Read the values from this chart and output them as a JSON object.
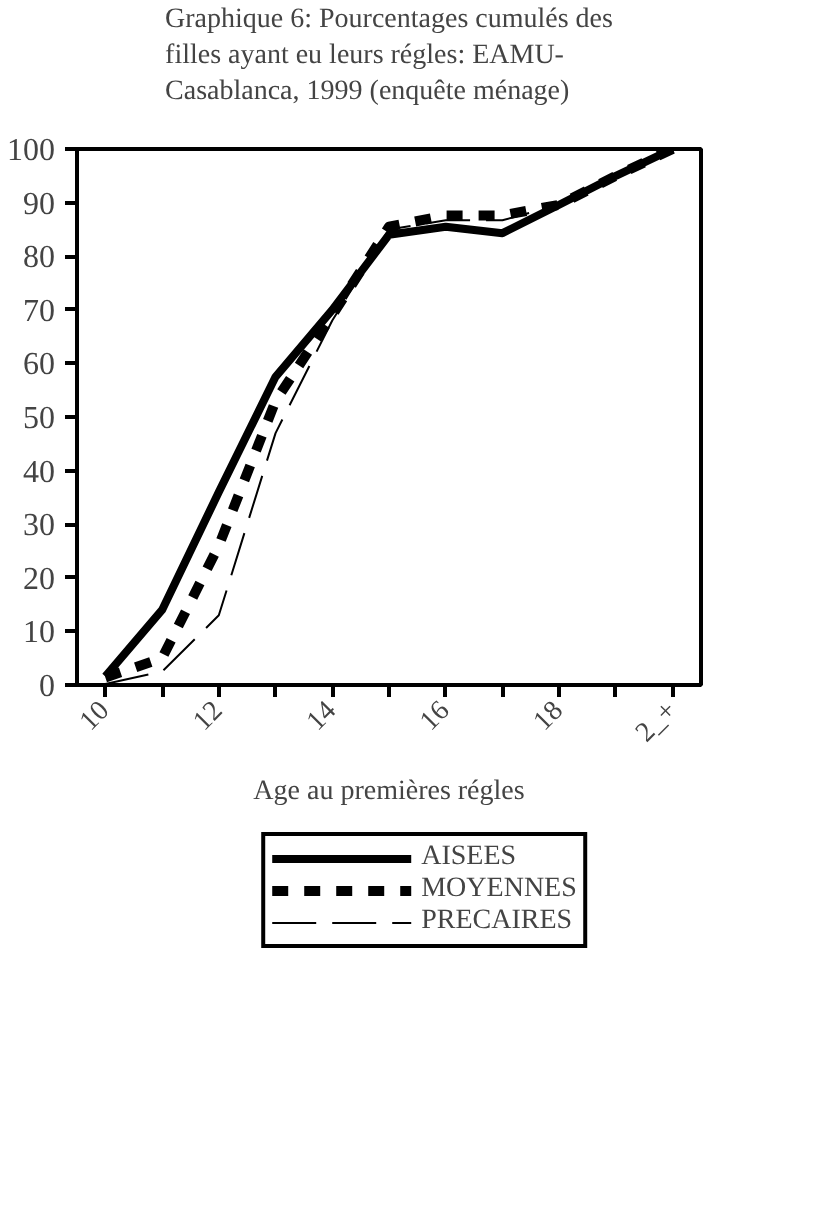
{
  "chart_data": {
    "type": "line",
    "title": "Graphique 6: Pourcentages cumulés des filles ayant eu leurs régles: EAMU-Casablanca, 1999 (enquête ménage)",
    "xlabel": "Age au premières régles",
    "categories": [
      "10",
      null,
      "12",
      null,
      "14",
      null,
      "16",
      null,
      "18",
      null,
      "2_+"
    ],
    "ylim": [
      0,
      100
    ],
    "yticks": [
      0,
      10,
      20,
      30,
      40,
      50,
      60,
      70,
      80,
      90,
      100
    ],
    "grid": false,
    "legend": "bottom",
    "marker": "none",
    "series": [
      {
        "name": "AISEES",
        "color": "#000000",
        "line_style": "solid",
        "values": [
          1.6,
          14,
          36,
          57.5,
          70,
          84,
          85.5,
          84.3,
          89.6,
          95,
          100
        ]
      },
      {
        "name": "MOYENNES",
        "color": "#000000",
        "line_style": "dashed",
        "values": [
          1.4,
          5,
          26,
          53,
          69,
          85.5,
          87.6,
          87.6,
          89.6,
          95,
          100
        ]
      },
      {
        "name": "PRECAIRES",
        "color": "#000000",
        "line_style": "dashed",
        "values": [
          0.2,
          2.5,
          13,
          47,
          68,
          85,
          86.7,
          86.7,
          89.6,
          95,
          100
        ]
      }
    ]
  }
}
